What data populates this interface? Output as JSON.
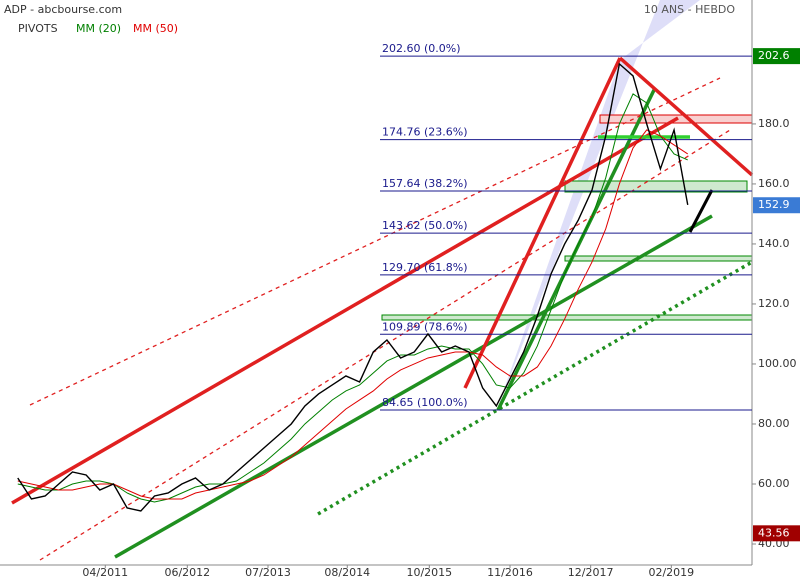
{
  "chart_data": {
    "type": "line",
    "title": "ADP - abcbourse.com",
    "subtitle": "10 ANS - HEBDO",
    "pivots_label": "PIVOTS",
    "color": "#000000",
    "values": [
      62,
      55,
      56,
      60,
      64,
      63,
      58,
      60,
      52,
      51,
      56,
      57,
      60,
      62,
      58,
      60,
      64,
      68,
      72,
      76,
      80,
      86,
      90,
      93,
      96,
      94,
      104,
      108,
      102,
      104,
      110,
      104,
      106,
      104,
      92,
      86,
      95,
      104,
      116,
      130,
      140,
      148,
      158,
      176,
      200,
      196,
      180,
      165,
      178,
      153
    ],
    "series": [
      {
        "name": "MM (20)",
        "color": "#008000",
        "values": [
          60,
          59,
          58,
          58,
          60,
          61,
          61,
          60,
          57,
          55,
          54,
          55,
          57,
          59,
          60,
          60,
          61,
          64,
          67,
          71,
          75,
          80,
          84,
          88,
          91,
          93,
          97,
          101,
          103,
          103,
          105,
          106,
          105,
          105,
          100,
          93,
          92,
          97,
          106,
          118,
          130,
          140,
          149,
          162,
          180,
          190,
          187,
          176,
          170,
          168
        ]
      },
      {
        "name": "MM (50)",
        "color": "#e00000",
        "values": [
          61,
          60,
          59,
          58,
          58,
          59,
          60,
          60,
          58,
          56,
          55,
          55,
          55,
          57,
          58,
          59,
          60,
          61,
          63,
          66,
          69,
          73,
          77,
          81,
          85,
          88,
          91,
          95,
          98,
          100,
          102,
          103,
          104,
          104,
          103,
          99,
          96,
          96,
          99,
          106,
          115,
          125,
          134,
          145,
          160,
          172,
          178,
          176,
          173,
          170
        ]
      }
    ],
    "xlim": [
      -1.3,
      53.7
    ],
    "xticks": [
      {
        "value": 6.4,
        "label": "04/2011"
      },
      {
        "value": 12.4,
        "label": "06/2012"
      },
      {
        "value": 18.3,
        "label": "07/2013"
      },
      {
        "value": 24.1,
        "label": "08/2014"
      },
      {
        "value": 30.1,
        "label": "10/2015"
      },
      {
        "value": 36.0,
        "label": "11/2016"
      },
      {
        "value": 41.9,
        "label": "12/2017"
      },
      {
        "value": 47.8,
        "label": "02/2019"
      }
    ],
    "ylim": [
      33,
      221.3
    ],
    "yticks": [
      {
        "value": 40,
        "label": "40.00"
      },
      {
        "value": 60,
        "label": "60.00"
      },
      {
        "value": 80,
        "label": "80.00"
      },
      {
        "value": 100,
        "label": "100.00"
      },
      {
        "value": 120,
        "label": "120.0"
      },
      {
        "value": 140,
        "label": "140.0"
      },
      {
        "value": 160,
        "label": "160.0"
      },
      {
        "value": 180,
        "label": "180.0"
      }
    ],
    "fib_levels": [
      {
        "value": 202.6,
        "label": "202.60  (0.0%)"
      },
      {
        "value": 174.76,
        "label": "174.76  (23.6%)"
      },
      {
        "value": 157.64,
        "label": "157.64  (38.2%)"
      },
      {
        "value": 143.62,
        "label": "143.62  (50.0%)"
      },
      {
        "value": 129.7,
        "label": "129.70  (61.8%)"
      },
      {
        "value": 109.89,
        "label": "109.89  (78.6%)"
      },
      {
        "value": 84.65,
        "label": "84.65  (100.0%)"
      }
    ],
    "price_markers": [
      {
        "value": 202.6,
        "color": "#008000"
      },
      {
        "value": 152.9,
        "color": "#3a7bd5"
      },
      {
        "value": 43.56,
        "color": "#a00000"
      }
    ]
  }
}
